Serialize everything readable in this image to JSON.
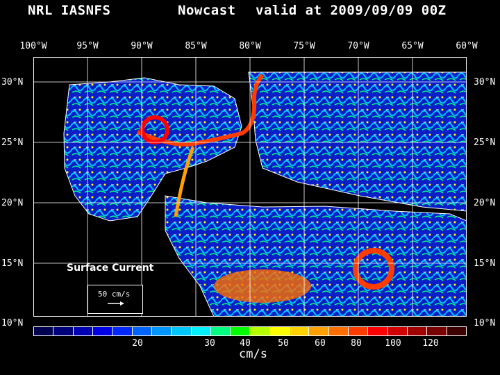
{
  "header": {
    "title_left": "NRL IASNFS",
    "title_mid": "Nowcast",
    "title_right": "valid at 2009/09/09 00Z"
  },
  "longitudes": [
    "100°W",
    "95°W",
    "90°W",
    "85°W",
    "80°W",
    "75°W",
    "70°W",
    "65°W",
    "60°W"
  ],
  "latitudes": [
    "30°N",
    "25°N",
    "20°N",
    "15°N",
    "10°N"
  ],
  "legend": {
    "colors": [
      "#000050",
      "#00007a",
      "#0000b4",
      "#0000e6",
      "#0028ff",
      "#0064ff",
      "#0096ff",
      "#00c8ff",
      "#00f0ff",
      "#00ff80",
      "#00ff00",
      "#b4ff00",
      "#ffff00",
      "#ffd200",
      "#ffa000",
      "#ff6e00",
      "#ff3c00",
      "#ff0000",
      "#d20000",
      "#a00000",
      "#780000",
      "#3c0000"
    ],
    "ticks": [
      "20",
      "30",
      "40",
      "50",
      "60",
      "80",
      "100",
      "120"
    ],
    "unit": "cm/s"
  },
  "annotation": {
    "label": "Surface Current",
    "reference": "50 cm/s"
  },
  "colors": {
    "land": "#000000",
    "ocean_low": "#00007a",
    "ocean_mid": "#00c8ff",
    "ocean_high": "#ff3c00",
    "coast": "#ffffff"
  }
}
